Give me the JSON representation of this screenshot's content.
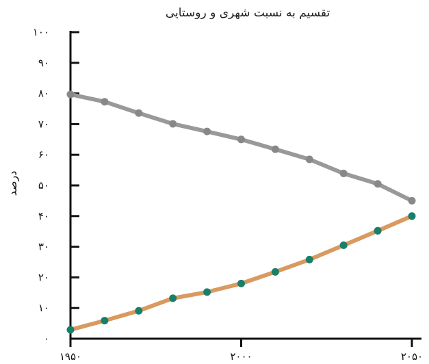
{
  "chart_data": {
    "type": "line",
    "title": "تقسیم به نسبت شهری و روستایی",
    "xlabel": "",
    "ylabel": "درصد",
    "xlim": [
      1950,
      2050
    ],
    "ylim": [
      0,
      100
    ],
    "x_ticks": [
      1950,
      2000,
      2050
    ],
    "x_tick_labels": [
      "۱۹۵۰",
      "۲۰۰۰",
      "۲۰۵۰"
    ],
    "y_ticks": [
      0,
      10,
      20,
      30,
      40,
      50,
      60,
      70,
      80,
      90,
      100
    ],
    "y_tick_labels": [
      "۰",
      "۱۰",
      "۲۰",
      "۳۰",
      "۴۰",
      "۵۰",
      "۶۰",
      "۷۰",
      "۸۰",
      "۹۰",
      "۱۰۰"
    ],
    "grid": false,
    "x": [
      1950,
      1960,
      1970,
      1980,
      1990,
      2000,
      2010,
      2020,
      2030,
      2040,
      2050
    ],
    "series": [
      {
        "values": [
          79.7,
          77.3,
          73.6,
          70.1,
          67.6,
          65.0,
          61.8,
          58.5,
          53.9,
          50.5,
          45.0
        ],
        "line_color": "#999999",
        "marker_color": "#888888"
      },
      {
        "values": [
          2.9,
          5.9,
          9.1,
          13.2,
          15.2,
          18.0,
          21.8,
          25.8,
          30.5,
          35.2,
          40.0
        ],
        "line_color": "#d99a60",
        "marker_color": "#1a7f6a"
      }
    ]
  }
}
